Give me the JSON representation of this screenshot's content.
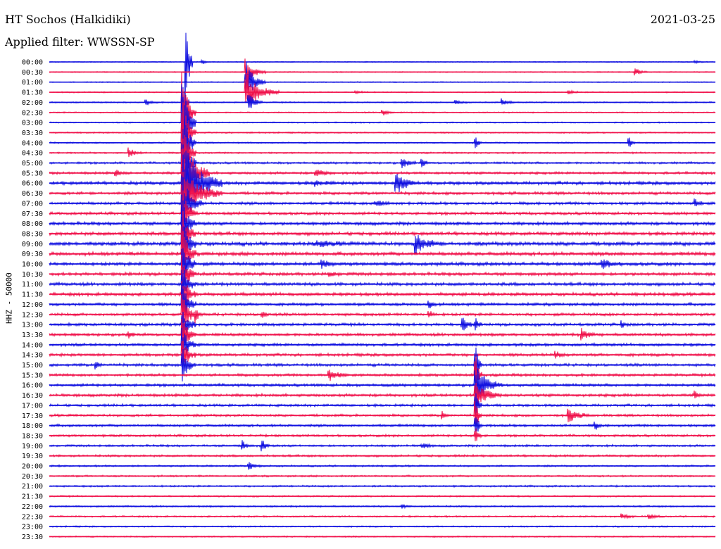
{
  "header": {
    "station": "HT Sochos (Halkidiki)",
    "filter": "Applied filter: WWSSN-SP",
    "date": "2021-03-25"
  },
  "chart_data": {
    "type": "line",
    "title": "HT Sochos (Halkidiki)",
    "subtitle": "Applied filter: WWSSN-SP",
    "ylabel": "HHZ - 50000",
    "colors": {
      "even_row": "#1010e0",
      "odd_row": "#f0104a"
    },
    "rows": [
      "00:00",
      "00:30",
      "01:00",
      "01:30",
      "02:00",
      "02:30",
      "03:00",
      "03:30",
      "04:00",
      "04:30",
      "05:00",
      "05:30",
      "06:00",
      "06:30",
      "07:00",
      "07:30",
      "08:00",
      "08:30",
      "09:00",
      "09:30",
      "10:00",
      "10:30",
      "11:00",
      "11:30",
      "12:00",
      "12:30",
      "13:00",
      "13:30",
      "14:00",
      "14:30",
      "15:00",
      "15:30",
      "16:00",
      "16:30",
      "17:00",
      "17:30",
      "18:00",
      "18:30",
      "19:00",
      "19:30",
      "20:00",
      "20:30",
      "21:00",
      "21:30",
      "22:00",
      "22:30",
      "23:00",
      "23:30"
    ],
    "noise": [
      0.6,
      0.6,
      0.6,
      0.7,
      0.7,
      0.7,
      0.7,
      0.8,
      0.8,
      0.9,
      1.2,
      1.4,
      1.8,
      1.6,
      1.6,
      1.6,
      1.8,
      1.9,
      2.2,
      2.0,
      1.9,
      1.8,
      1.8,
      1.8,
      1.6,
      1.6,
      1.6,
      1.6,
      1.6,
      1.6,
      1.6,
      1.5,
      1.6,
      1.6,
      1.4,
      1.4,
      1.4,
      1.3,
      1.2,
      1.2,
      1.0,
      1.0,
      1.0,
      0.9,
      0.9,
      0.9,
      0.8,
      0.8
    ],
    "events": [
      {
        "row": 0,
        "x": 0.23,
        "amp": 3,
        "dur": 0.01
      },
      {
        "row": 0,
        "x": 0.97,
        "amp": 2,
        "dur": 0.01
      },
      {
        "row": 0,
        "x": 0.205,
        "amp": 80,
        "dur": 0.01
      },
      {
        "row": 1,
        "x": 0.295,
        "amp": 20,
        "dur": 0.03
      },
      {
        "row": 1,
        "x": 0.88,
        "amp": 5,
        "dur": 0.02
      },
      {
        "row": 2,
        "x": 0.295,
        "amp": 32,
        "dur": 0.03
      },
      {
        "row": 3,
        "x": 0.295,
        "amp": 30,
        "dur": 0.05
      },
      {
        "row": 3,
        "x": 0.46,
        "amp": 3,
        "dur": 0.02
      },
      {
        "row": 3,
        "x": 0.78,
        "amp": 3,
        "dur": 0.02
      },
      {
        "row": 4,
        "x": 0.145,
        "amp": 4,
        "dur": 0.02
      },
      {
        "row": 4,
        "x": 0.3,
        "amp": 14,
        "dur": 0.02
      },
      {
        "row": 4,
        "x": 0.61,
        "amp": 3,
        "dur": 0.02
      },
      {
        "row": 4,
        "x": 0.68,
        "amp": 5,
        "dur": 0.02
      },
      {
        "row": 4,
        "x": 0.2,
        "amp": 40,
        "dur": 0.01
      },
      {
        "row": 5,
        "x": 0.5,
        "amp": 5,
        "dur": 0.02
      },
      {
        "row": 5,
        "x": 0.2,
        "amp": 60,
        "dur": 0.02
      },
      {
        "row": 6,
        "x": 0.2,
        "amp": 60,
        "dur": 0.02
      },
      {
        "row": 7,
        "x": 0.2,
        "amp": 60,
        "dur": 0.02
      },
      {
        "row": 8,
        "x": 0.64,
        "amp": 9,
        "dur": 0.01
      },
      {
        "row": 8,
        "x": 0.87,
        "amp": 9,
        "dur": 0.01
      },
      {
        "row": 8,
        "x": 0.2,
        "amp": 60,
        "dur": 0.02
      },
      {
        "row": 9,
        "x": 0.12,
        "amp": 7,
        "dur": 0.02
      },
      {
        "row": 9,
        "x": 0.2,
        "amp": 60,
        "dur": 0.02
      },
      {
        "row": 10,
        "x": 0.53,
        "amp": 8,
        "dur": 0.02
      },
      {
        "row": 10,
        "x": 0.56,
        "amp": 8,
        "dur": 0.01
      },
      {
        "row": 10,
        "x": 0.2,
        "amp": 60,
        "dur": 0.02
      },
      {
        "row": 11,
        "x": 0.1,
        "amp": 4,
        "dur": 0.02
      },
      {
        "row": 11,
        "x": 0.4,
        "amp": 5,
        "dur": 0.03
      },
      {
        "row": 11,
        "x": 0.2,
        "amp": 60,
        "dur": 0.04
      },
      {
        "row": 12,
        "x": 0.52,
        "amp": 20,
        "dur": 0.03
      },
      {
        "row": 12,
        "x": 0.4,
        "amp": 4,
        "dur": 0.03
      },
      {
        "row": 12,
        "x": 0.2,
        "amp": 60,
        "dur": 0.06
      },
      {
        "row": 13,
        "x": 0.2,
        "amp": 40,
        "dur": 0.06
      },
      {
        "row": 14,
        "x": 0.49,
        "amp": 4,
        "dur": 0.04
      },
      {
        "row": 14,
        "x": 0.97,
        "amp": 6,
        "dur": 0.01
      },
      {
        "row": 14,
        "x": 0.2,
        "amp": 40,
        "dur": 0.03
      },
      {
        "row": 15,
        "x": 0.2,
        "amp": 40,
        "dur": 0.02
      },
      {
        "row": 16,
        "x": 0.2,
        "amp": 40,
        "dur": 0.02
      },
      {
        "row": 17,
        "x": 0.2,
        "amp": 40,
        "dur": 0.02
      },
      {
        "row": 18,
        "x": 0.55,
        "amp": 14,
        "dur": 0.04
      },
      {
        "row": 18,
        "x": 0.4,
        "amp": 4,
        "dur": 0.05
      },
      {
        "row": 18,
        "x": 0.2,
        "amp": 40,
        "dur": 0.02
      },
      {
        "row": 19,
        "x": 0.2,
        "amp": 40,
        "dur": 0.02
      },
      {
        "row": 20,
        "x": 0.41,
        "amp": 6,
        "dur": 0.02
      },
      {
        "row": 20,
        "x": 0.83,
        "amp": 7,
        "dur": 0.03
      },
      {
        "row": 20,
        "x": 0.2,
        "amp": 40,
        "dur": 0.02
      },
      {
        "row": 21,
        "x": 0.2,
        "amp": 30,
        "dur": 0.02
      },
      {
        "row": 21,
        "x": 0.42,
        "amp": 4,
        "dur": 0.02
      },
      {
        "row": 22,
        "x": 0.2,
        "amp": 30,
        "dur": 0.02
      },
      {
        "row": 23,
        "x": 0.2,
        "amp": 30,
        "dur": 0.02
      },
      {
        "row": 24,
        "x": 0.2,
        "amp": 30,
        "dur": 0.02
      },
      {
        "row": 24,
        "x": 0.57,
        "amp": 8,
        "dur": 0.01
      },
      {
        "row": 25,
        "x": 0.22,
        "amp": 10,
        "dur": 0.01
      },
      {
        "row": 25,
        "x": 0.32,
        "amp": 6,
        "dur": 0.01
      },
      {
        "row": 25,
        "x": 0.57,
        "amp": 7,
        "dur": 0.01
      },
      {
        "row": 25,
        "x": 0.2,
        "amp": 30,
        "dur": 0.02
      },
      {
        "row": 26,
        "x": 0.62,
        "amp": 10,
        "dur": 0.02
      },
      {
        "row": 26,
        "x": 0.64,
        "amp": 8,
        "dur": 0.01
      },
      {
        "row": 26,
        "x": 0.86,
        "amp": 5,
        "dur": 0.01
      },
      {
        "row": 26,
        "x": 0.2,
        "amp": 25,
        "dur": 0.02
      },
      {
        "row": 27,
        "x": 0.12,
        "amp": 4,
        "dur": 0.01
      },
      {
        "row": 27,
        "x": 0.8,
        "amp": 9,
        "dur": 0.02
      },
      {
        "row": 27,
        "x": 0.2,
        "amp": 25,
        "dur": 0.02
      },
      {
        "row": 28,
        "x": 0.2,
        "amp": 25,
        "dur": 0.02
      },
      {
        "row": 29,
        "x": 0.2,
        "amp": 25,
        "dur": 0.02
      },
      {
        "row": 29,
        "x": 0.76,
        "amp": 5,
        "dur": 0.02
      },
      {
        "row": 30,
        "x": 0.07,
        "amp": 7,
        "dur": 0.01
      },
      {
        "row": 30,
        "x": 0.2,
        "amp": 25,
        "dur": 0.02
      },
      {
        "row": 30,
        "x": 0.64,
        "amp": 30,
        "dur": 0.01
      },
      {
        "row": 31,
        "x": 0.42,
        "amp": 8,
        "dur": 0.03
      },
      {
        "row": 31,
        "x": 0.64,
        "amp": 30,
        "dur": 0.01
      },
      {
        "row": 32,
        "x": 0.64,
        "amp": 30,
        "dur": 0.04
      },
      {
        "row": 33,
        "x": 0.64,
        "amp": 20,
        "dur": 0.04
      },
      {
        "row": 33,
        "x": 0.97,
        "amp": 5,
        "dur": 0.01
      },
      {
        "row": 34,
        "x": 0.64,
        "amp": 20,
        "dur": 0.01
      },
      {
        "row": 35,
        "x": 0.59,
        "amp": 5,
        "dur": 0.01
      },
      {
        "row": 35,
        "x": 0.78,
        "amp": 10,
        "dur": 0.03
      },
      {
        "row": 35,
        "x": 0.64,
        "amp": 20,
        "dur": 0.01
      },
      {
        "row": 36,
        "x": 0.82,
        "amp": 6,
        "dur": 0.01
      },
      {
        "row": 36,
        "x": 0.64,
        "amp": 20,
        "dur": 0.01
      },
      {
        "row": 37,
        "x": 0.64,
        "amp": 12,
        "dur": 0.01
      },
      {
        "row": 38,
        "x": 0.29,
        "amp": 10,
        "dur": 0.01
      },
      {
        "row": 38,
        "x": 0.32,
        "amp": 10,
        "dur": 0.01
      },
      {
        "row": 38,
        "x": 0.56,
        "amp": 4,
        "dur": 0.02
      },
      {
        "row": 40,
        "x": 0.3,
        "amp": 5,
        "dur": 0.02
      },
      {
        "row": 44,
        "x": 0.53,
        "amp": 4,
        "dur": 0.01
      },
      {
        "row": 45,
        "x": 0.86,
        "amp": 4,
        "dur": 0.02
      },
      {
        "row": 45,
        "x": 0.9,
        "amp": 4,
        "dur": 0.02
      }
    ]
  }
}
